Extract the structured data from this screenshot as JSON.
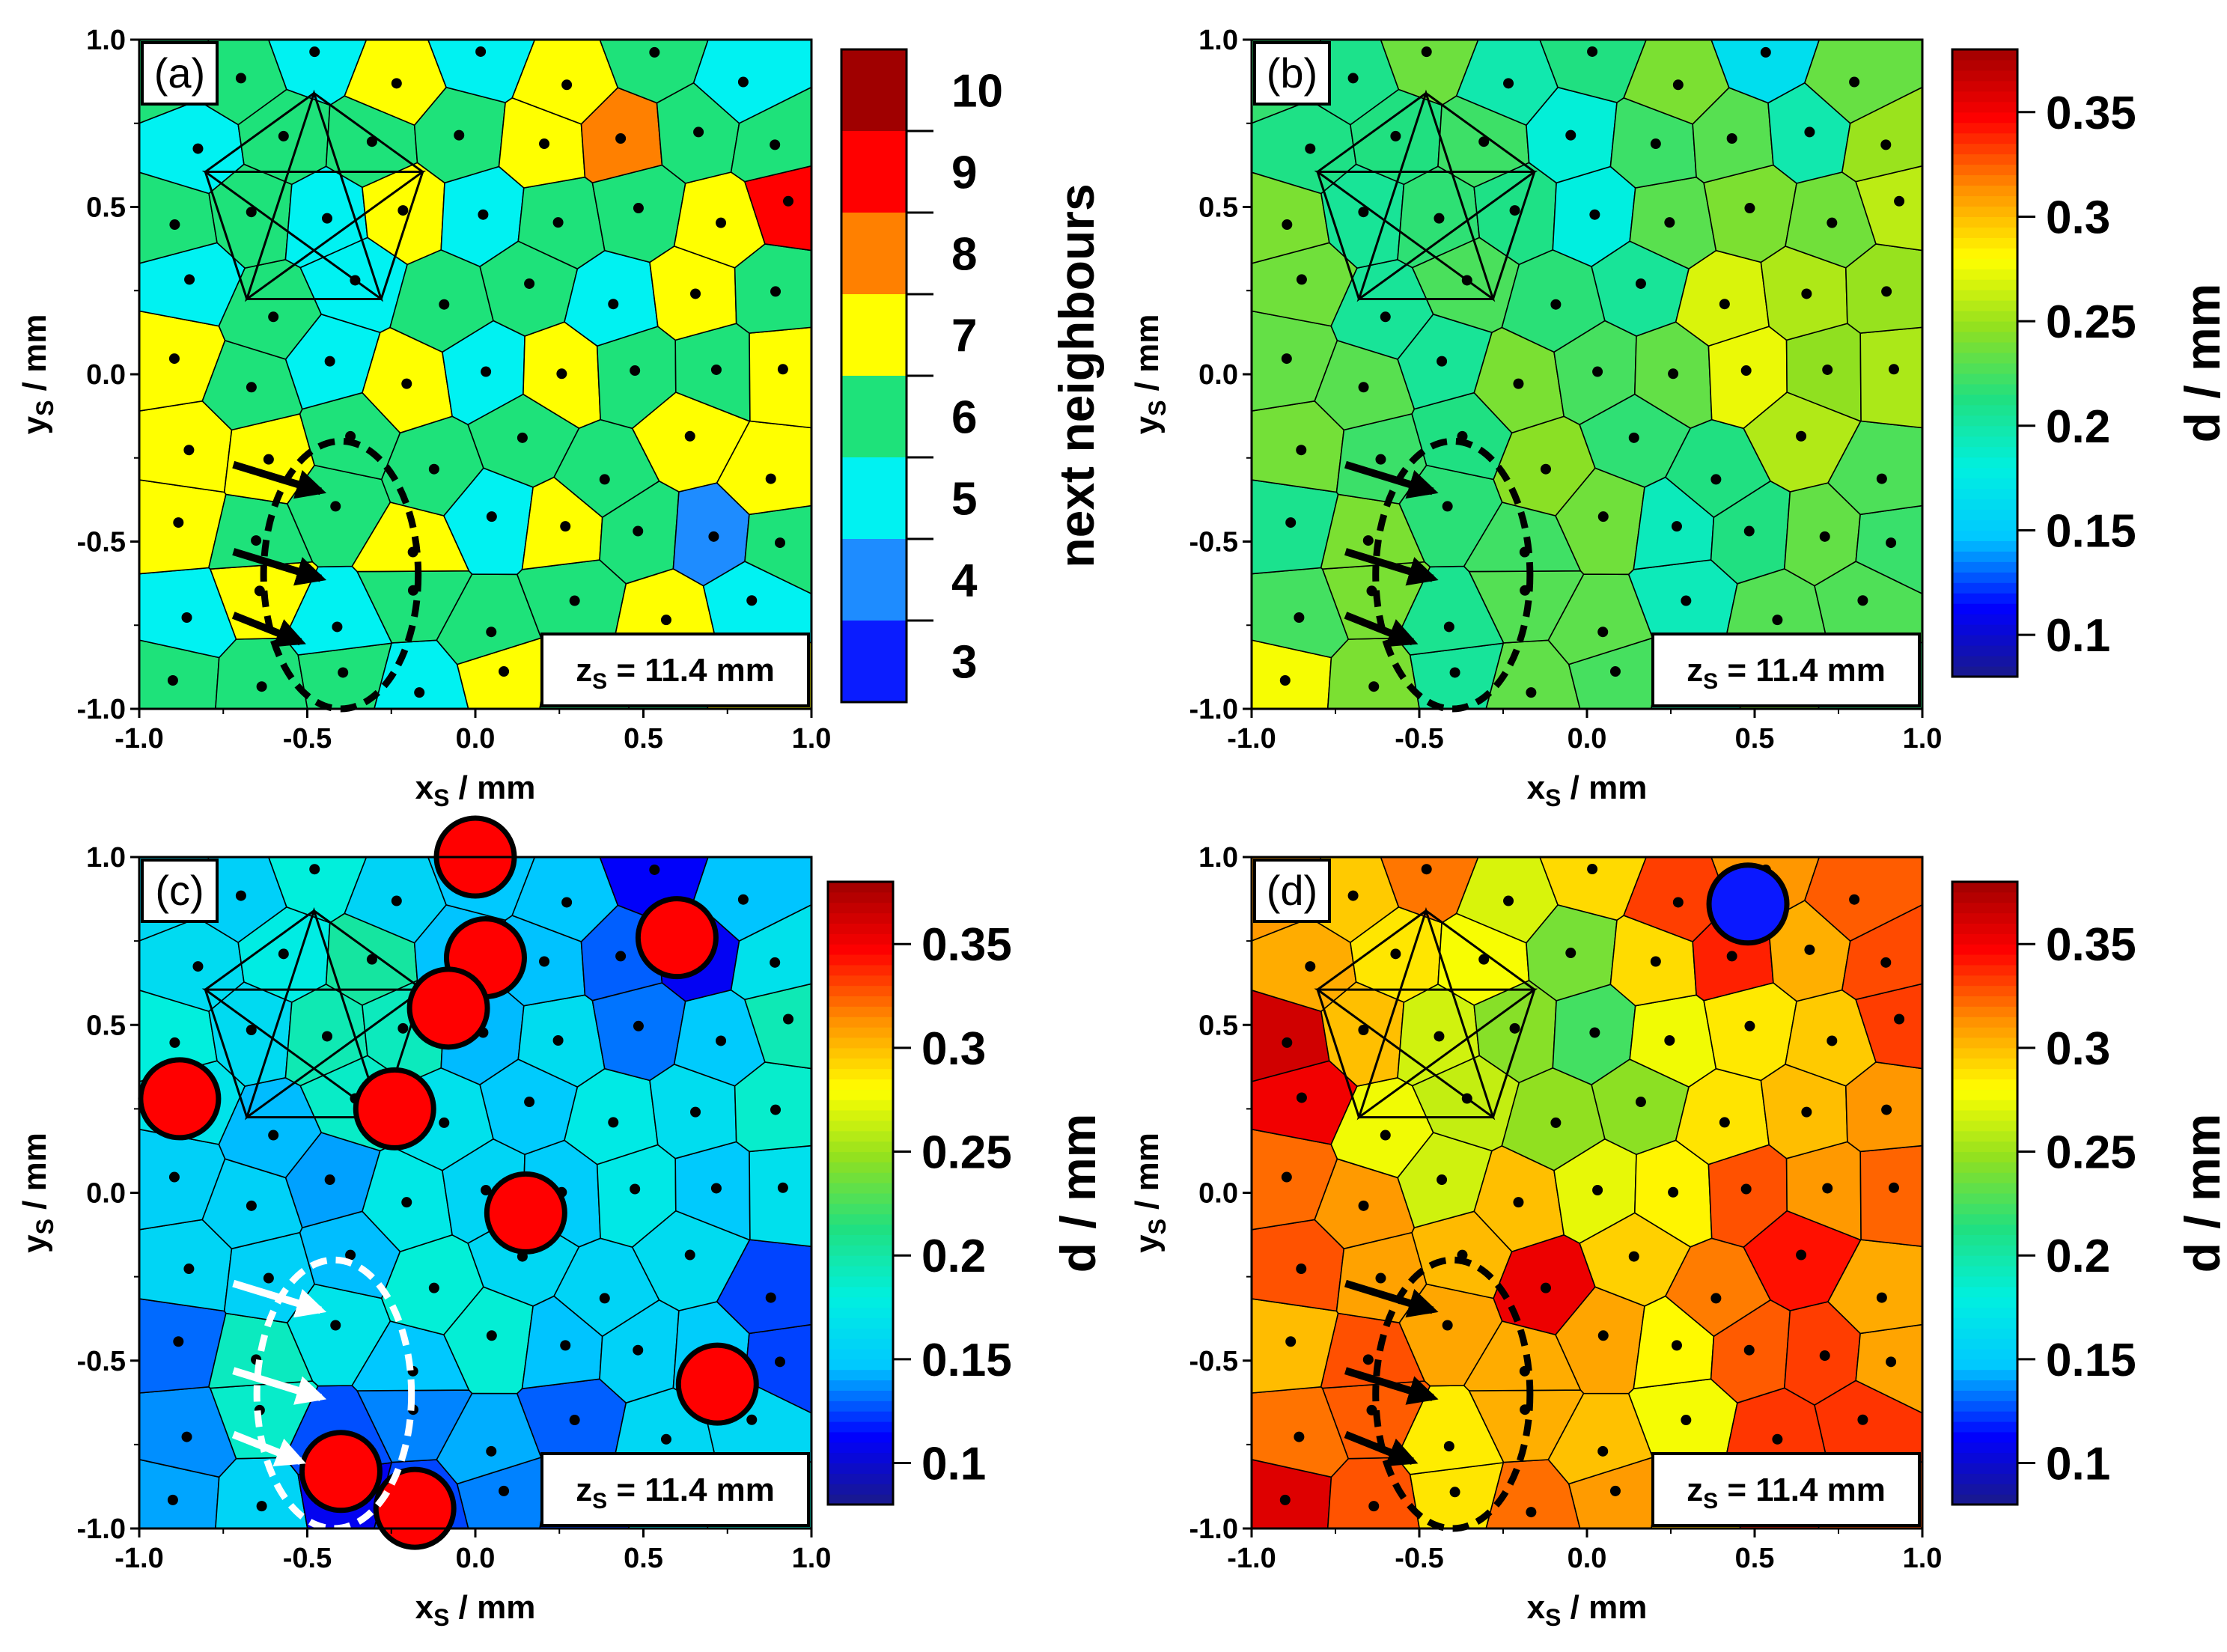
{
  "chart_data": [
    {
      "type": "heatmap",
      "subtype": "voronoi",
      "panel_label": "(a)",
      "xlabel": "x",
      "xlabel_sub": "S",
      "xlabel_unit": " / mm",
      "ylabel": "y",
      "ylabel_sub": "S",
      "ylabel_unit": " / mm",
      "xlim": [
        -1.0,
        1.0
      ],
      "ylim": [
        -1.0,
        1.0
      ],
      "xticks": [
        "-1.0",
        "-0.5",
        "0.0",
        "0.5",
        "1.0"
      ],
      "yticks": [
        "-1.0",
        "-0.5",
        "0.0",
        "0.5",
        "1.0"
      ],
      "annotation_prefix": "z",
      "annotation_sub": "S",
      "annotation_value": " = 11.4 mm",
      "colorbar": {
        "label": "next neighbours",
        "type": "discrete",
        "levels": [
          "3",
          "4",
          "5",
          "6",
          "7",
          "8",
          "9",
          "10"
        ],
        "colors": [
          "#0a1cff",
          "#1e8cff",
          "#00f2f2",
          "#1ee27a",
          "#ffff00",
          "#ff8000",
          "#ff0000",
          "#a00000"
        ]
      },
      "color_scale": "discrete",
      "field": [
        [
          -0.38,
          0.35,
          0.3,
          5.5
        ],
        [
          0.5,
          -0.5,
          0.25,
          7.2
        ],
        [
          0.0,
          0.2,
          0.45,
          6.0
        ],
        [
          0.6,
          0.7,
          0.2,
          5.0
        ],
        [
          0.85,
          0.5,
          0.12,
          9.0
        ],
        [
          0.42,
          0.75,
          0.1,
          9.0
        ],
        [
          -0.95,
          -0.05,
          0.1,
          8.0
        ],
        [
          -0.78,
          -0.3,
          0.1,
          8.0
        ],
        [
          -0.2,
          -0.55,
          0.1,
          8.0
        ],
        [
          0.85,
          -0.3,
          0.1,
          8.0
        ],
        [
          -0.3,
          -0.8,
          0.18,
          5.2
        ],
        [
          0.7,
          -0.55,
          0.12,
          4.0
        ],
        [
          0.0,
          -0.7,
          0.3,
          6.0
        ]
      ],
      "field_base": 6.0,
      "markers": [],
      "ellipse": {
        "cx": -0.4,
        "cy": -0.6,
        "rx": 0.23,
        "ry": 0.4,
        "color": "black"
      },
      "arrows": [
        {
          "x": -0.72,
          "y": -0.27,
          "dx": 0.26,
          "dy": -0.08
        },
        {
          "x": -0.72,
          "y": -0.53,
          "dx": 0.26,
          "dy": -0.08
        },
        {
          "x": -0.72,
          "y": -0.72,
          "dx": 0.2,
          "dy": -0.08
        }
      ],
      "arrow_color": "black"
    },
    {
      "type": "heatmap",
      "subtype": "voronoi",
      "panel_label": "(b)",
      "xlabel": "x",
      "xlabel_sub": "S",
      "xlabel_unit": " / mm",
      "ylabel": "y",
      "ylabel_sub": "S",
      "ylabel_unit": " / mm",
      "xlim": [
        -1.0,
        1.0
      ],
      "ylim": [
        -1.0,
        1.0
      ],
      "xticks": [
        "-1.0",
        "-0.5",
        "0.0",
        "0.5",
        "1.0"
      ],
      "yticks": [
        "-1.0",
        "-0.5",
        "0.0",
        "0.5",
        "1.0"
      ],
      "annotation_prefix": "z",
      "annotation_sub": "S",
      "annotation_value": " = 11.4 mm",
      "colorbar": {
        "label": "d / mm",
        "type": "continuous",
        "range": [
          0.08,
          0.38
        ],
        "ticks": [
          "0.1",
          "0.15",
          "0.2",
          "0.25",
          "0.3",
          "0.35"
        ],
        "stops": [
          "#1a1a8a",
          "#0000ff",
          "#00c8ff",
          "#00f0e0",
          "#20e080",
          "#90e020",
          "#ffff00",
          "#ff9000",
          "#ff0000",
          "#a00000"
        ]
      },
      "color_scale": "continuous",
      "field": [
        [
          0.6,
          0.1,
          0.4,
          0.27
        ],
        [
          0.95,
          -0.3,
          0.2,
          0.25
        ],
        [
          0.35,
          0.7,
          0.18,
          0.255
        ],
        [
          -0.05,
          0.55,
          0.3,
          0.195
        ],
        [
          0.55,
          0.85,
          0.1,
          0.14
        ],
        [
          -0.2,
          -0.45,
          0.18,
          0.23
        ],
        [
          -0.9,
          0.1,
          0.3,
          0.225
        ],
        [
          0.4,
          -0.5,
          0.25,
          0.205
        ],
        [
          -0.9,
          -0.95,
          0.12,
          0.28
        ]
      ],
      "field_base": 0.222,
      "markers": [],
      "ellipse": {
        "cx": -0.4,
        "cy": -0.6,
        "rx": 0.23,
        "ry": 0.4,
        "color": "black"
      },
      "arrows": [
        {
          "x": -0.72,
          "y": -0.27,
          "dx": 0.26,
          "dy": -0.08
        },
        {
          "x": -0.72,
          "y": -0.53,
          "dx": 0.26,
          "dy": -0.08
        },
        {
          "x": -0.72,
          "y": -0.72,
          "dx": 0.2,
          "dy": -0.08
        }
      ],
      "arrow_color": "black"
    },
    {
      "type": "heatmap",
      "subtype": "voronoi",
      "panel_label": "(c)",
      "xlabel": "x",
      "xlabel_sub": "S",
      "xlabel_unit": " / mm",
      "ylabel": "y",
      "ylabel_sub": "S",
      "ylabel_unit": " / mm",
      "xlim": [
        -1.0,
        1.0
      ],
      "ylim": [
        -1.0,
        1.0
      ],
      "xticks": [
        "-1.0",
        "-0.5",
        "0.0",
        "0.5",
        "1.0"
      ],
      "yticks": [
        "-1.0",
        "-0.5",
        "0.0",
        "0.5",
        "1.0"
      ],
      "annotation_prefix": "z",
      "annotation_sub": "S",
      "annotation_value": " = 11.4 mm",
      "colorbar": {
        "label": "d / mm",
        "type": "continuous",
        "range": [
          0.08,
          0.38
        ],
        "ticks": [
          "0.1",
          "0.15",
          "0.2",
          "0.25",
          "0.3",
          "0.35"
        ],
        "stops": [
          "#1a1a8a",
          "#0000ff",
          "#00c8ff",
          "#00f0e0",
          "#20e080",
          "#90e020",
          "#ffff00",
          "#ff9000",
          "#ff0000",
          "#a00000"
        ]
      },
      "color_scale": "continuous",
      "field": [
        [
          -0.4,
          0.55,
          0.32,
          0.195
        ],
        [
          0.85,
          0.35,
          0.25,
          0.205
        ],
        [
          -0.45,
          -0.55,
          0.2,
          0.2
        ],
        [
          0.1,
          -0.3,
          0.25,
          0.175
        ],
        [
          0.2,
          0.35,
          0.25,
          0.17
        ],
        [
          0.85,
          -0.9,
          0.15,
          0.195
        ],
        [
          -0.95,
          0.7,
          0.2,
          0.175
        ],
        [
          -0.2,
          -0.85,
          0.2,
          0.11
        ],
        [
          0.5,
          0.7,
          0.25,
          0.12
        ]
      ],
      "field_base": 0.14,
      "markers": [
        {
          "x": 0.0,
          "y": 1.0,
          "color": "red"
        },
        {
          "x": 0.03,
          "y": 0.7,
          "color": "red"
        },
        {
          "x": -0.08,
          "y": 0.55,
          "color": "red"
        },
        {
          "x": 0.6,
          "y": 0.76,
          "color": "red"
        },
        {
          "x": -0.88,
          "y": 0.28,
          "color": "red"
        },
        {
          "x": -0.24,
          "y": 0.25,
          "color": "red"
        },
        {
          "x": 0.15,
          "y": -0.06,
          "color": "red"
        },
        {
          "x": 0.72,
          "y": -0.57,
          "color": "red"
        },
        {
          "x": -0.4,
          "y": -0.83,
          "color": "red"
        },
        {
          "x": -0.18,
          "y": -0.94,
          "color": "red"
        }
      ],
      "ellipse": {
        "cx": -0.42,
        "cy": -0.6,
        "rx": 0.23,
        "ry": 0.4,
        "color": "white"
      },
      "arrows": [
        {
          "x": -0.72,
          "y": -0.27,
          "dx": 0.26,
          "dy": -0.08
        },
        {
          "x": -0.72,
          "y": -0.53,
          "dx": 0.26,
          "dy": -0.08
        },
        {
          "x": -0.72,
          "y": -0.72,
          "dx": 0.2,
          "dy": -0.08
        }
      ],
      "arrow_color": "white"
    },
    {
      "type": "heatmap",
      "subtype": "voronoi",
      "panel_label": "(d)",
      "xlabel": "x",
      "xlabel_sub": "S",
      "xlabel_unit": " / mm",
      "ylabel": "y",
      "ylabel_sub": "S",
      "ylabel_unit": " / mm",
      "xlim": [
        -1.0,
        1.0
      ],
      "ylim": [
        -1.0,
        1.0
      ],
      "xticks": [
        "-1.0",
        "-0.5",
        "0.0",
        "0.5",
        "1.0"
      ],
      "yticks": [
        "-1.0",
        "-0.5",
        "0.0",
        "0.5",
        "1.0"
      ],
      "annotation_prefix": "z",
      "annotation_sub": "S",
      "annotation_value": " = 11.4 mm",
      "colorbar": {
        "label": "d / mm",
        "type": "continuous",
        "range": [
          0.08,
          0.38
        ],
        "ticks": [
          "0.1",
          "0.15",
          "0.2",
          "0.25",
          "0.3",
          "0.35"
        ],
        "stops": [
          "#1a1a8a",
          "#0000ff",
          "#00c8ff",
          "#00f0e0",
          "#20e080",
          "#90e020",
          "#ffff00",
          "#ff9000",
          "#ff0000",
          "#a00000"
        ]
      },
      "color_scale": "continuous",
      "field": [
        [
          -0.1,
          0.4,
          0.35,
          0.225
        ],
        [
          0.45,
          0.8,
          0.15,
          0.35
        ],
        [
          -0.85,
          0.4,
          0.15,
          0.35
        ],
        [
          0.9,
          -0.8,
          0.2,
          0.34
        ],
        [
          -0.2,
          -0.35,
          0.15,
          0.35
        ],
        [
          0.6,
          -0.1,
          0.3,
          0.33
        ],
        [
          -0.9,
          -0.9,
          0.12,
          0.36
        ],
        [
          -0.4,
          -0.7,
          0.2,
          0.3
        ],
        [
          0.1,
          -0.6,
          0.15,
          0.26
        ],
        [
          0.3,
          0.3,
          0.2,
          0.26
        ]
      ],
      "field_base": 0.315,
      "markers": [
        {
          "x": 0.48,
          "y": 0.86,
          "color": "blue"
        }
      ],
      "ellipse": {
        "cx": -0.4,
        "cy": -0.6,
        "rx": 0.23,
        "ry": 0.4,
        "color": "black"
      },
      "arrows": [
        {
          "x": -0.72,
          "y": -0.27,
          "dx": 0.26,
          "dy": -0.08
        },
        {
          "x": -0.72,
          "y": -0.53,
          "dx": 0.26,
          "dy": -0.08
        },
        {
          "x": -0.72,
          "y": -0.72,
          "dx": 0.2,
          "dy": -0.08
        }
      ],
      "arrow_color": "black"
    }
  ],
  "particles": [
    [
      -0.9,
      -0.95
    ],
    [
      -0.65,
      -0.9
    ],
    [
      -0.42,
      -0.92
    ],
    [
      -0.2,
      -0.93
    ],
    [
      0.05,
      -0.9
    ],
    [
      0.3,
      -0.93
    ],
    [
      0.55,
      -0.9
    ],
    [
      0.8,
      -0.92
    ],
    [
      -0.85,
      -0.7
    ],
    [
      -0.62,
      -0.68
    ],
    [
      -0.38,
      -0.72
    ],
    [
      -0.15,
      -0.68
    ],
    [
      0.08,
      -0.74
    ],
    [
      0.32,
      -0.7
    ],
    [
      0.58,
      -0.72
    ],
    [
      0.82,
      -0.68
    ],
    [
      -0.9,
      -0.45
    ],
    [
      -0.68,
      -0.48
    ],
    [
      -0.45,
      -0.42
    ],
    [
      -0.22,
      -0.5
    ],
    [
      0.02,
      -0.46
    ],
    [
      0.25,
      -0.42
    ],
    [
      0.48,
      -0.5
    ],
    [
      0.72,
      -0.46
    ],
    [
      0.93,
      -0.52
    ],
    [
      -0.82,
      -0.22
    ],
    [
      -0.58,
      -0.25
    ],
    [
      -0.34,
      -0.2
    ],
    [
      -0.1,
      -0.26
    ],
    [
      0.15,
      -0.22
    ],
    [
      0.38,
      -0.28
    ],
    [
      0.62,
      -0.22
    ],
    [
      0.85,
      -0.28
    ],
    [
      -0.93,
      0.02
    ],
    [
      -0.7,
      -0.02
    ],
    [
      -0.46,
      0.03
    ],
    [
      -0.22,
      -0.03
    ],
    [
      0.03,
      0.02
    ],
    [
      0.27,
      -0.02
    ],
    [
      0.5,
      0.04
    ],
    [
      0.75,
      -0.02
    ],
    [
      0.95,
      0.05
    ],
    [
      -0.82,
      0.25
    ],
    [
      -0.58,
      0.2
    ],
    [
      -0.35,
      0.26
    ],
    [
      -0.1,
      0.22
    ],
    [
      0.14,
      0.27
    ],
    [
      0.38,
      0.2
    ],
    [
      0.62,
      0.26
    ],
    [
      0.86,
      0.22
    ],
    [
      -0.92,
      0.48
    ],
    [
      -0.68,
      0.45
    ],
    [
      -0.44,
      0.5
    ],
    [
      -0.2,
      0.46
    ],
    [
      0.05,
      0.5
    ],
    [
      0.28,
      0.44
    ],
    [
      0.52,
      0.5
    ],
    [
      0.76,
      0.46
    ],
    [
      0.95,
      0.5
    ],
    [
      -0.82,
      0.7
    ],
    [
      -0.58,
      0.68
    ],
    [
      -0.33,
      0.73
    ],
    [
      -0.08,
      0.68
    ],
    [
      0.17,
      0.72
    ],
    [
      0.4,
      0.68
    ],
    [
      0.64,
      0.74
    ],
    [
      0.88,
      0.68
    ],
    [
      -0.92,
      0.92
    ],
    [
      -0.68,
      0.9
    ],
    [
      -0.45,
      0.94
    ],
    [
      -0.2,
      0.9
    ],
    [
      0.05,
      0.93
    ],
    [
      0.3,
      0.9
    ],
    [
      0.55,
      0.93
    ],
    [
      0.8,
      0.9
    ]
  ]
}
